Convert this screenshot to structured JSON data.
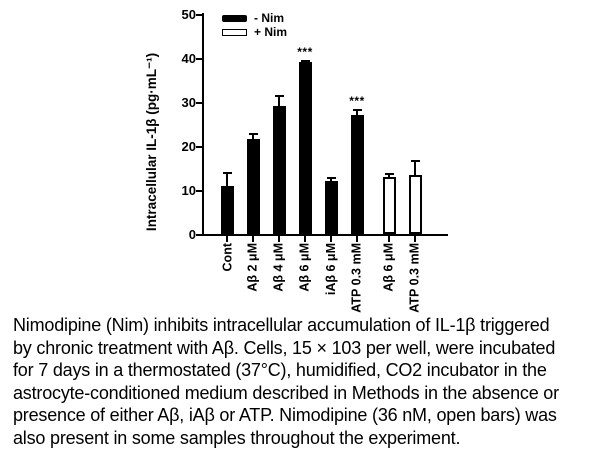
{
  "figure": {
    "caption_lines": [
      "Nimodipine (Nim) inhibits intracellular accumulation of IL-1β triggered",
      "by chronic treatment with Aβ. Cells, 15 × 103 per well, were incubated",
      "for 7 days in a thermostated (37°C), humidified, CO2 incubator in the",
      "astrocyte-conditioned medium described in Methods in the absence or",
      "presence of either Aβ, iAβ or ATP. Nimodipine (36 nM, open bars) was",
      "also present in some samples throughout the experiment."
    ]
  },
  "chart_data": {
    "type": "bar",
    "title": "",
    "xlabel": "",
    "ylabel": "Intracellular IL-1β (pg·mL⁻¹)",
    "ylim": [
      0,
      50
    ],
    "yticks": [
      0,
      10,
      20,
      30,
      40,
      50
    ],
    "grid": false,
    "legend_position": "top-left-inside",
    "legend": [
      {
        "label": "- Nim",
        "fill": "filled"
      },
      {
        "label": "+ Nim",
        "fill": "open"
      }
    ],
    "categories": [
      "Cont",
      "Aβ 2 μM",
      "Aβ 4 μM",
      "Aβ 6 μM",
      "iAβ 6 μM",
      "ATP 0.3 mM",
      "Aβ 6 μM",
      "ATP 0.3 mM"
    ],
    "bars": [
      {
        "label": "Cont",
        "value": 11,
        "error_upper": 3,
        "group": "- Nim",
        "fill": "filled",
        "significance": ""
      },
      {
        "label": "Aβ 2 μM",
        "value": 21.5,
        "error_upper": 1.5,
        "group": "- Nim",
        "fill": "filled",
        "significance": ""
      },
      {
        "label": "Aβ 4 μM",
        "value": 29,
        "error_upper": 2.5,
        "group": "- Nim",
        "fill": "filled",
        "significance": ""
      },
      {
        "label": "Aβ 6 μM",
        "value": 39,
        "error_upper": 0.5,
        "group": "- Nim",
        "fill": "filled",
        "significance": "***"
      },
      {
        "label": "iAβ 6 μM",
        "value": 12,
        "error_upper": 1,
        "group": "- Nim",
        "fill": "filled",
        "significance": ""
      },
      {
        "label": "ATP 0.3 mM",
        "value": 27,
        "error_upper": 1.5,
        "group": "- Nim",
        "fill": "filled",
        "significance": "***"
      },
      {
        "label": "Aβ 6 μM",
        "value": 13,
        "error_upper": 0.8,
        "group": "+ Nim",
        "fill": "open",
        "significance": ""
      },
      {
        "label": "ATP 0.3 mM",
        "value": 13.5,
        "error_upper": 3.3,
        "group": "+ Nim",
        "fill": "open",
        "significance": ""
      }
    ],
    "colors": {
      "filled": "#000000",
      "open": "#ffffff",
      "ink": "#000000",
      "background": "#ffffff"
    }
  }
}
